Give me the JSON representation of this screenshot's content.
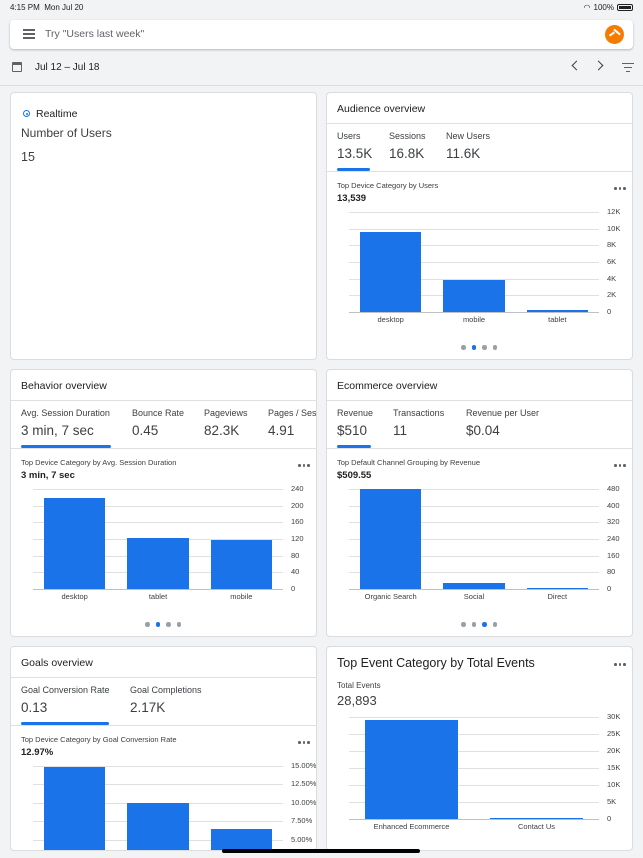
{
  "status_bar": {
    "time": "4:15 PM",
    "date": "Mon Jul 20",
    "battery": "100%"
  },
  "search": {
    "placeholder": "Try \"Users last week\""
  },
  "date_range": {
    "label": "Jul 12 – Jul 18"
  },
  "realtime": {
    "title": "Realtime",
    "metric_label": "Number of Users",
    "value": "15"
  },
  "audience": {
    "title": "Audience overview",
    "metrics": [
      {
        "label": "Users",
        "value": "13.5K"
      },
      {
        "label": "Sessions",
        "value": "16.8K"
      },
      {
        "label": "New Users",
        "value": "11.6K"
      }
    ],
    "subtitle": "Top Device Category by Users",
    "subvalue": "13,539",
    "active_page": 1
  },
  "behavior": {
    "title": "Behavior overview",
    "metrics": [
      {
        "label": "Avg. Session Duration",
        "value": "3 min, 7 sec"
      },
      {
        "label": "Bounce Rate",
        "value": "0.45"
      },
      {
        "label": "Pageviews",
        "value": "82.3K"
      },
      {
        "label": "Pages / Ses",
        "value": "4.91"
      }
    ],
    "subtitle": "Top Device Category by Avg. Session Duration",
    "subvalue": "3 min, 7 sec",
    "active_page": 1
  },
  "ecommerce": {
    "title": "Ecommerce overview",
    "metrics": [
      {
        "label": "Revenue",
        "value": "$510"
      },
      {
        "label": "Transactions",
        "value": "11"
      },
      {
        "label": "Revenue per User",
        "value": "$0.04"
      }
    ],
    "subtitle": "Top Default Channel Grouping by Revenue",
    "subvalue": "$509.55",
    "active_page": 2
  },
  "goals": {
    "title": "Goals overview",
    "metrics": [
      {
        "label": "Goal Conversion Rate",
        "value": "0.13"
      },
      {
        "label": "Goal Completions",
        "value": "2.17K"
      }
    ],
    "subtitle": "Top Device Category by Goal Conversion Rate",
    "subvalue": "12.97%"
  },
  "events": {
    "title": "Top Event Category by Total Events",
    "metric_label": "Total Events",
    "metric_value": "28,893"
  },
  "colors": {
    "accent": "#1a73e8",
    "logo": "#f57c00"
  },
  "chart_data": [
    {
      "id": "audience",
      "type": "bar",
      "title": "Top Device Category by Users",
      "categories": [
        "desktop",
        "mobile",
        "tablet"
      ],
      "values": [
        9600,
        3800,
        200
      ],
      "ticks": [
        "12K",
        "10K",
        "8K",
        "6K",
        "4K",
        "2K",
        "0"
      ],
      "ylim": [
        0,
        12000
      ]
    },
    {
      "id": "behavior",
      "type": "bar",
      "title": "Top Device Category by Avg. Session Duration",
      "categories": [
        "desktop",
        "tablet",
        "mobile"
      ],
      "values": [
        218,
        122,
        118
      ],
      "ticks": [
        "240",
        "200",
        "160",
        "120",
        "80",
        "40",
        "0"
      ],
      "ylim": [
        0,
        240
      ]
    },
    {
      "id": "ecommerce",
      "type": "bar",
      "title": "Top Default Channel Grouping by Revenue",
      "categories": [
        "Organic Search",
        "Social",
        "Direct"
      ],
      "values": [
        478,
        30,
        5
      ],
      "ticks": [
        "480",
        "400",
        "320",
        "240",
        "160",
        "80",
        "0"
      ],
      "ylim": [
        0,
        480
      ]
    },
    {
      "id": "goals",
      "type": "bar",
      "title": "Top Device Category by Goal Conversion Rate",
      "categories": [
        "",
        "",
        ""
      ],
      "values": [
        14.9,
        10.0,
        6.4
      ],
      "ticks": [
        "15.00%",
        "12.50%",
        "10.00%",
        "7.50%",
        "5.00%"
      ],
      "ylim": [
        0,
        15
      ]
    },
    {
      "id": "events",
      "type": "bar",
      "title": "Top Event Category by Total Events",
      "categories": [
        "Enhanced Ecommerce",
        "Contact Us"
      ],
      "values": [
        29000,
        200
      ],
      "ticks": [
        "30K",
        "25K",
        "20K",
        "15K",
        "10K",
        "5K",
        "0"
      ],
      "ylim": [
        0,
        30000
      ]
    }
  ]
}
